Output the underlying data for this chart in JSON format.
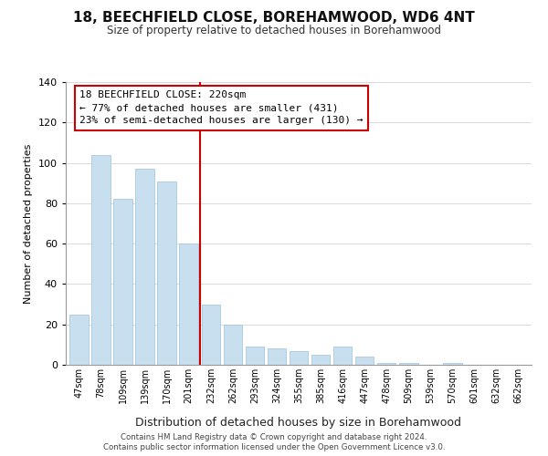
{
  "title": "18, BEECHFIELD CLOSE, BOREHAMWOOD, WD6 4NT",
  "subtitle": "Size of property relative to detached houses in Borehamwood",
  "xlabel": "Distribution of detached houses by size in Borehamwood",
  "ylabel": "Number of detached properties",
  "bar_labels": [
    "47sqm",
    "78sqm",
    "109sqm",
    "139sqm",
    "170sqm",
    "201sqm",
    "232sqm",
    "262sqm",
    "293sqm",
    "324sqm",
    "355sqm",
    "385sqm",
    "416sqm",
    "447sqm",
    "478sqm",
    "509sqm",
    "539sqm",
    "570sqm",
    "601sqm",
    "632sqm",
    "662sqm"
  ],
  "bar_values": [
    25,
    104,
    82,
    97,
    91,
    60,
    30,
    20,
    9,
    8,
    7,
    5,
    9,
    4,
    1,
    1,
    0,
    1,
    0,
    0,
    0
  ],
  "bar_color": "#c8dff0",
  "bar_edge_color": "#a8c8e0",
  "vline_x": 5.5,
  "vline_color": "#cc0000",
  "annotation_title": "18 BEECHFIELD CLOSE: 220sqm",
  "annotation_line1": "← 77% of detached houses are smaller (431)",
  "annotation_line2": "23% of semi-detached houses are larger (130) →",
  "annotation_box_facecolor": "#ffffff",
  "annotation_border_color": "#cc0000",
  "ylim": [
    0,
    140
  ],
  "yticks": [
    0,
    20,
    40,
    60,
    80,
    100,
    120,
    140
  ],
  "footer1": "Contains HM Land Registry data © Crown copyright and database right 2024.",
  "footer2": "Contains public sector information licensed under the Open Government Licence v3.0."
}
